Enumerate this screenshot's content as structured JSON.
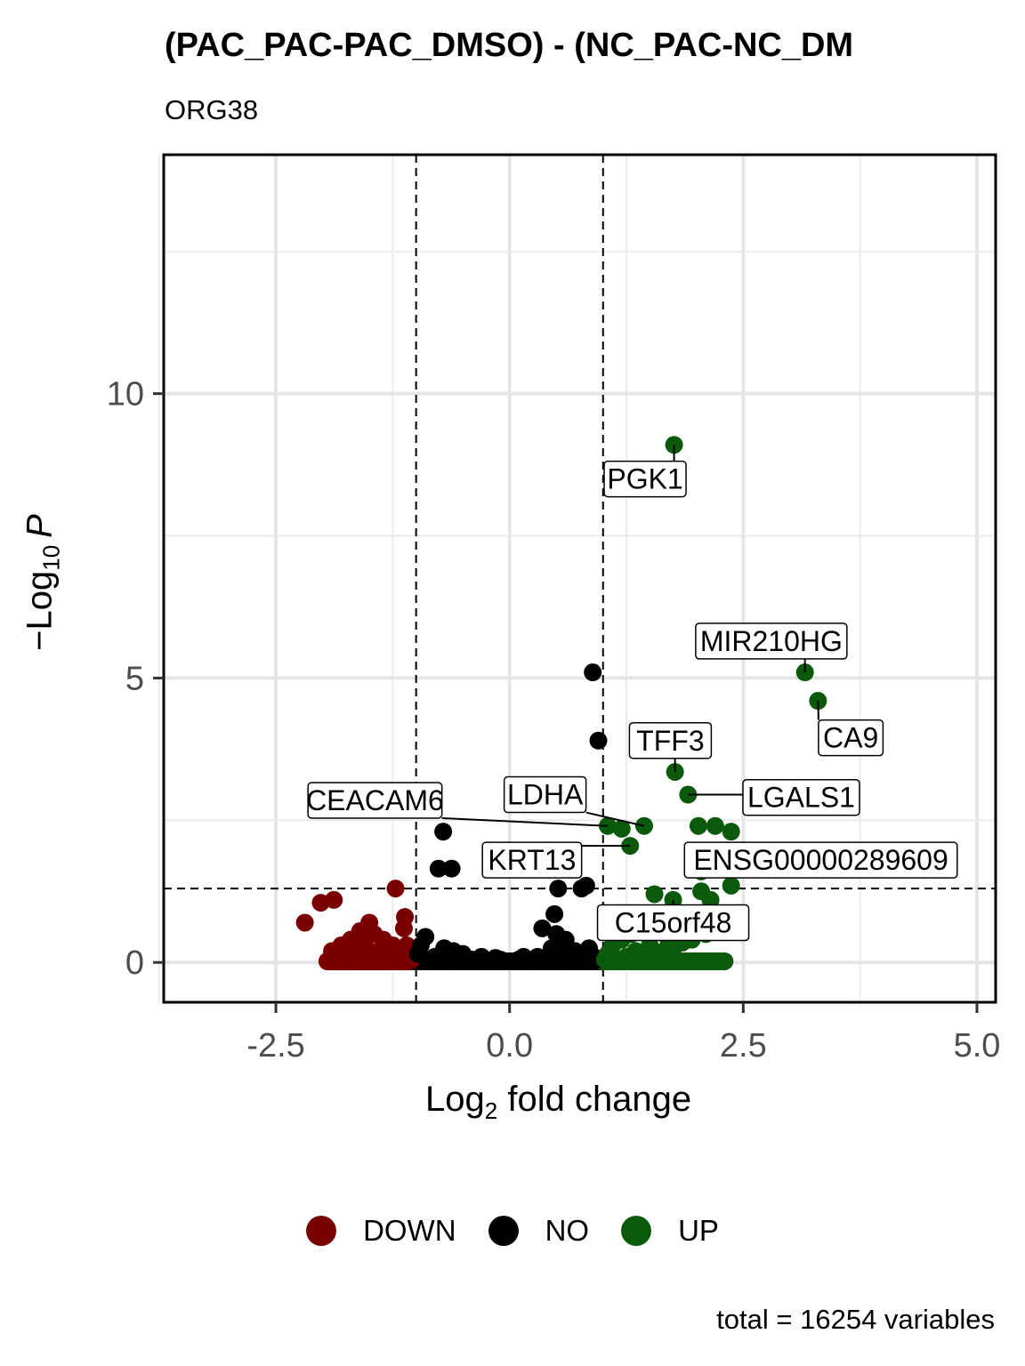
{
  "chart_data": {
    "type": "scatter",
    "title": "(PAC_PAC-PAC_DMSO) - (NC_PAC-NC_DM",
    "subtitle": "ORG38",
    "xlabel_main": "Log",
    "xlabel_sub": "2",
    "xlabel_rest": " fold change",
    "ylabel_main": "−Log",
    "ylabel_sub": "10",
    "ylabel_rest": "P",
    "caption": "total = 16254 variables",
    "xlim": [
      -3.7,
      5.2
    ],
    "ylim": [
      -0.7,
      14.2
    ],
    "xticks": [
      -2.5,
      0.0,
      2.5,
      5.0
    ],
    "xtick_labels": [
      "-2.5",
      "0.0",
      "2.5",
      "5.0"
    ],
    "yticks": [
      0,
      5,
      10
    ],
    "ytick_labels": [
      "0",
      "5",
      "10"
    ],
    "thresholds": {
      "fc": [
        -1,
        1
      ],
      "p": 1.3
    },
    "colors": {
      "DOWN": "#7a0000",
      "NO": "#000000",
      "UP": "#0b5a0b"
    },
    "legend": [
      "DOWN",
      "NO",
      "UP"
    ],
    "points": {
      "DOWN": [
        [
          -1.22,
          1.3
        ],
        [
          -1.88,
          1.1
        ],
        [
          -2.02,
          1.05
        ],
        [
          -2.19,
          0.7
        ],
        [
          -1.12,
          0.8
        ],
        [
          -1.13,
          0.6
        ],
        [
          -1.5,
          0.7
        ],
        [
          -1.6,
          0.55
        ],
        [
          -1.45,
          0.5
        ],
        [
          -1.7,
          0.4
        ],
        [
          -1.55,
          0.35
        ],
        [
          -1.35,
          0.4
        ],
        [
          -1.25,
          0.3
        ],
        [
          -1.8,
          0.3
        ],
        [
          -1.65,
          0.25
        ],
        [
          -1.4,
          0.2
        ],
        [
          -1.3,
          0.15
        ],
        [
          -1.15,
          0.2
        ],
        [
          -1.9,
          0.2
        ],
        [
          -1.5,
          0.1
        ],
        [
          -1.2,
          0.1
        ],
        [
          -1.05,
          0.05
        ],
        [
          -1.6,
          0.1
        ],
        [
          -1.75,
          0.15
        ],
        [
          -1.1,
          0.3
        ],
        [
          -1.35,
          0.05
        ]
      ],
      "NO": [
        [
          0.89,
          5.1
        ],
        [
          0.95,
          3.9
        ],
        [
          -0.71,
          2.3
        ],
        [
          -0.76,
          1.65
        ],
        [
          -0.62,
          1.65
        ],
        [
          0.52,
          1.3
        ],
        [
          0.77,
          1.3
        ],
        [
          0.82,
          1.35
        ],
        [
          0.48,
          0.85
        ],
        [
          0.35,
          0.6
        ],
        [
          0.5,
          0.5
        ],
        [
          0.6,
          0.4
        ],
        [
          -0.9,
          0.45
        ],
        [
          -0.95,
          0.3
        ],
        [
          -0.6,
          0.2
        ],
        [
          -0.5,
          0.15
        ],
        [
          -0.3,
          0.1
        ],
        [
          -0.1,
          0.05
        ],
        [
          0.1,
          0.05
        ],
        [
          0.3,
          0.1
        ],
        [
          0.7,
          0.2
        ],
        [
          0.85,
          0.25
        ],
        [
          0.9,
          0.1
        ],
        [
          -0.8,
          0.1
        ],
        [
          -0.4,
          0.05
        ],
        [
          0.0,
          0.02
        ],
        [
          0.2,
          0.02
        ],
        [
          -0.2,
          0.02
        ],
        [
          0.55,
          0.15
        ],
        [
          -0.7,
          0.25
        ],
        [
          0.65,
          0.05
        ],
        [
          -0.85,
          0.05
        ],
        [
          0.45,
          0.25
        ],
        [
          0.95,
          0.05
        ],
        [
          -0.98,
          0.15
        ],
        [
          0.75,
          0.1
        ],
        [
          -0.55,
          0.05
        ],
        [
          0.15,
          0.1
        ],
        [
          -0.15,
          0.08
        ],
        [
          0.4,
          0.05
        ]
      ],
      "UP": [
        [
          1.76,
          9.1
        ],
        [
          3.16,
          5.1
        ],
        [
          3.3,
          4.6
        ],
        [
          1.77,
          3.35
        ],
        [
          1.91,
          2.95
        ],
        [
          1.05,
          2.4
        ],
        [
          1.44,
          2.4
        ],
        [
          1.2,
          2.35
        ],
        [
          1.29,
          2.05
        ],
        [
          2.02,
          2.4
        ],
        [
          2.2,
          2.4
        ],
        [
          2.37,
          2.3
        ],
        [
          2.4,
          1.8
        ],
        [
          2.2,
          1.7
        ],
        [
          2.05,
          1.6
        ],
        [
          1.55,
          1.2
        ],
        [
          2.37,
          1.35
        ],
        [
          1.75,
          1.1
        ],
        [
          2.05,
          1.25
        ],
        [
          2.15,
          1.1
        ],
        [
          1.9,
          0.85
        ],
        [
          1.6,
          0.7
        ],
        [
          1.4,
          0.6
        ],
        [
          1.3,
          0.5
        ],
        [
          1.2,
          0.4
        ],
        [
          1.1,
          0.3
        ],
        [
          1.7,
          0.4
        ],
        [
          1.85,
          0.35
        ],
        [
          1.5,
          0.3
        ],
        [
          1.05,
          0.15
        ],
        [
          1.25,
          0.1
        ],
        [
          1.45,
          0.15
        ],
        [
          1.65,
          0.2
        ],
        [
          1.15,
          0.05
        ],
        [
          1.35,
          0.2
        ],
        [
          1.55,
          0.05
        ],
        [
          1.75,
          0.25
        ],
        [
          1.95,
          0.4
        ],
        [
          2.1,
          0.5
        ],
        [
          1.02,
          0.05
        ]
      ]
    },
    "labels": [
      {
        "text": "PGK1",
        "x": 1.76,
        "y": 9.1,
        "lx": 1.45,
        "ly": 8.5
      },
      {
        "text": "MIR210HG",
        "x": 3.16,
        "y": 5.1,
        "lx": 2.8,
        "ly": 5.65
      },
      {
        "text": "CA9",
        "x": 3.3,
        "y": 4.6,
        "lx": 3.65,
        "ly": 3.95
      },
      {
        "text": "TFF3",
        "x": 1.77,
        "y": 3.35,
        "lx": 1.72,
        "ly": 3.9
      },
      {
        "text": "LGALS1",
        "x": 1.91,
        "y": 2.95,
        "lx": 3.12,
        "ly": 2.9
      },
      {
        "text": "LDHA",
        "x": 1.44,
        "y": 2.4,
        "lx": 0.38,
        "ly": 2.95
      },
      {
        "text": "CEACAM6",
        "x": 1.05,
        "y": 2.4,
        "lx": -1.44,
        "ly": 2.85
      },
      {
        "text": "KRT13",
        "x": 1.29,
        "y": 2.05,
        "lx": 0.24,
        "ly": 1.8
      },
      {
        "text": "ENSG00000289609",
        "x": 2.2,
        "y": 1.7,
        "lx": 3.33,
        "ly": 1.8
      },
      {
        "text": "C15orf48",
        "x": 1.75,
        "y": 1.1,
        "lx": 1.75,
        "ly": 0.7
      }
    ]
  }
}
